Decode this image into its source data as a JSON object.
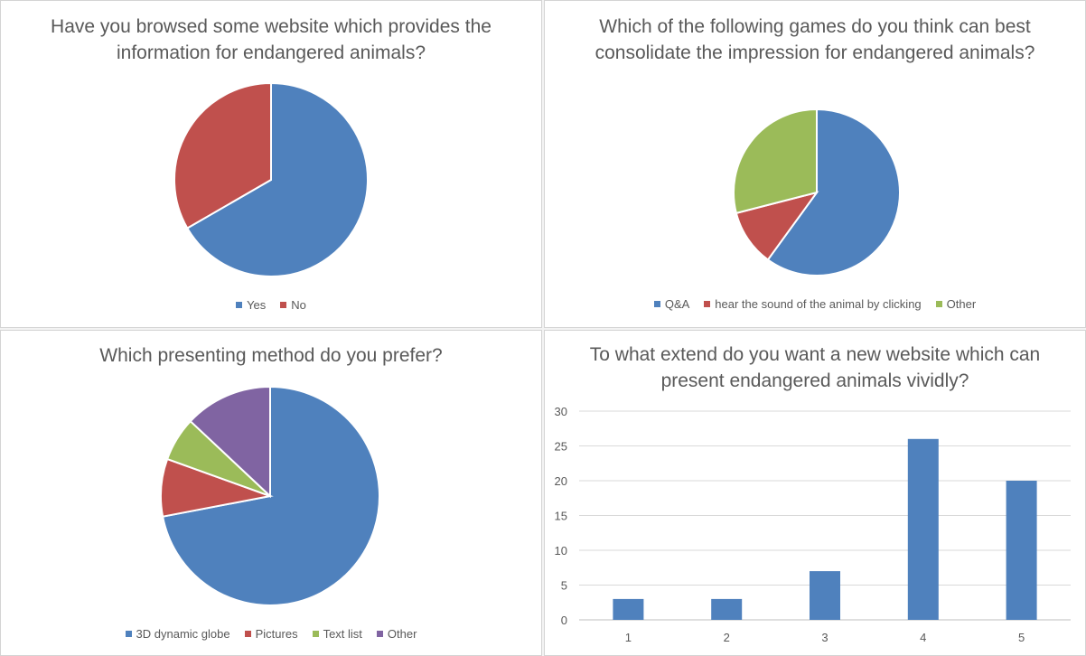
{
  "colors": {
    "blue": "#4f81bd",
    "red": "#c0504d",
    "green": "#9bbb59",
    "purple": "#8064a2"
  },
  "chart_data": [
    {
      "type": "pie",
      "title": "Have you browsed some website which provides the information for endangered animals?",
      "categories": [
        "Yes",
        "No"
      ],
      "values": [
        2,
        1
      ],
      "colors": [
        "#4f81bd",
        "#c0504d"
      ],
      "legend": "bottom"
    },
    {
      "type": "pie",
      "title": "Which of the following games do you think can best consolidate the impression for endangered animals?",
      "categories": [
        "Q&A",
        "hear the sound of the animal by clicking",
        "Other"
      ],
      "values": [
        60,
        11,
        29
      ],
      "colors": [
        "#4f81bd",
        "#c0504d",
        "#9bbb59"
      ],
      "legend": "bottom"
    },
    {
      "type": "pie",
      "title": "Which presenting method do you prefer?",
      "categories": [
        "3D dynamic globe",
        "Pictures",
        "Text list",
        "Other"
      ],
      "values": [
        72,
        8.5,
        6.5,
        13
      ],
      "colors": [
        "#4f81bd",
        "#c0504d",
        "#9bbb59",
        "#8064a2"
      ],
      "legend": "bottom"
    },
    {
      "type": "bar",
      "title": "To what extend do you want a new website which can present endangered animals vividly?",
      "categories": [
        "1",
        "2",
        "3",
        "4",
        "5"
      ],
      "values": [
        3,
        3,
        7,
        26,
        20
      ],
      "ylim": [
        0,
        30
      ],
      "yticks": [
        "0",
        "5",
        "10",
        "15",
        "20",
        "25",
        "30"
      ],
      "grid": true,
      "color": "#4f81bd"
    }
  ]
}
